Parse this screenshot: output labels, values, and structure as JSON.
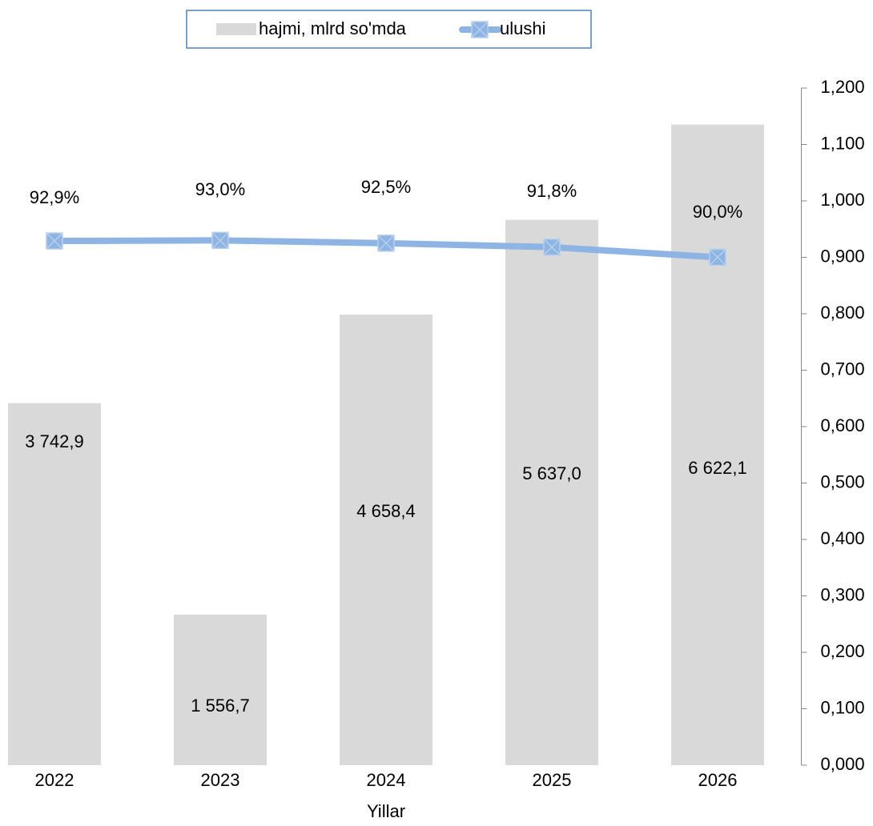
{
  "chart_data": {
    "type": "bar",
    "x_label": "Yillar",
    "categories": [
      "2022",
      "2023",
      "2024",
      "2025",
      "2026"
    ],
    "series": [
      {
        "name": "hajmi, mlrd so'mda",
        "type": "bar",
        "color": "#d9d9d9",
        "values": [
          3742.9,
          1556.7,
          4658.4,
          5637.0,
          6622.1
        ],
        "value_labels": [
          "3 742,9",
          "1 556,7",
          "4 658,4",
          "5 637,0",
          "6 622,1"
        ]
      },
      {
        "name": "ulushi",
        "type": "line",
        "axis": "y2",
        "color": "#8db4e2",
        "values": [
          0.929,
          0.93,
          0.925,
          0.918,
          0.9
        ],
        "value_labels": [
          "92,9%",
          "93,0%",
          "92,5%",
          "91,8%",
          "90,0%"
        ]
      }
    ],
    "ylim": [
      0,
      7000
    ],
    "y2lim": [
      0,
      1.2
    ],
    "y2ticks": [
      {
        "value": 0,
        "label": "0,000"
      },
      {
        "value": 0.1,
        "label": "0,100"
      },
      {
        "value": 0.2,
        "label": "0,200"
      },
      {
        "value": 0.3,
        "label": "0,300"
      },
      {
        "value": 0.4,
        "label": "0,400"
      },
      {
        "value": 0.5,
        "label": "0,500"
      },
      {
        "value": 0.6,
        "label": "0,600"
      },
      {
        "value": 0.7,
        "label": "0,700"
      },
      {
        "value": 0.8,
        "label": "0,800"
      },
      {
        "value": 0.9,
        "label": "0,900"
      },
      {
        "value": 1.0,
        "label": "1,000"
      },
      {
        "value": 1.1,
        "label": "1,100"
      },
      {
        "value": 1.2,
        "label": "1,200"
      }
    ],
    "legend": "top"
  }
}
